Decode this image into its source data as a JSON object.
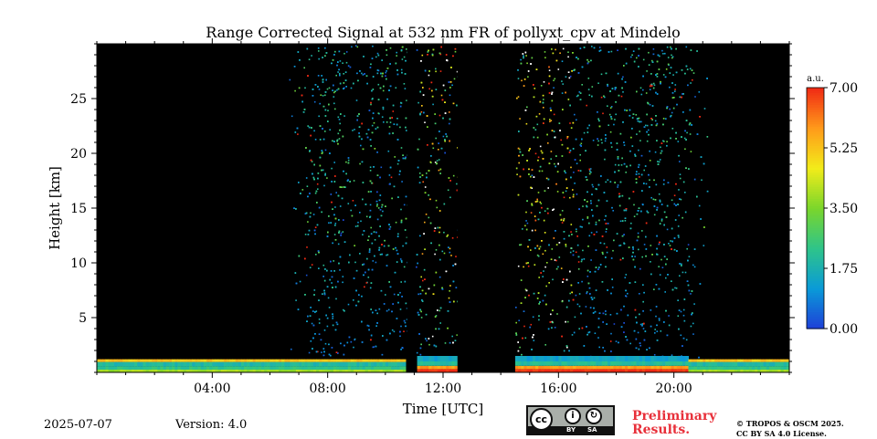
{
  "chart_data": {
    "type": "heatmap",
    "title": "Range Corrected Signal at 532 nm FR of pollyxt_cpv at Mindelo",
    "xlabel": "Time [UTC]",
    "ylabel": "Height [km]",
    "xlim": [
      0,
      24
    ],
    "ylim": [
      0,
      30
    ],
    "x_ticks": [
      {
        "value": 4,
        "label": "04:00"
      },
      {
        "value": 8,
        "label": "08:00"
      },
      {
        "value": 12,
        "label": "12:00"
      },
      {
        "value": 16,
        "label": "16:00"
      },
      {
        "value": 20,
        "label": "20:00"
      }
    ],
    "y_ticks": [
      {
        "value": 5,
        "label": "5"
      },
      {
        "value": 10,
        "label": "10"
      },
      {
        "value": 15,
        "label": "15"
      },
      {
        "value": 20,
        "label": "20"
      },
      {
        "value": 25,
        "label": "25"
      }
    ],
    "colorbar": {
      "label": "a.u.",
      "min": 0.0,
      "max": 7.0,
      "ticks": [
        {
          "value": 0.0,
          "label": "0.00"
        },
        {
          "value": 1.75,
          "label": "1.75"
        },
        {
          "value": 3.5,
          "label": "3.50"
        },
        {
          "value": 5.25,
          "label": "5.25"
        },
        {
          "value": 7.0,
          "label": "7.00"
        }
      ],
      "colormap": [
        "#1f3fd8",
        "#0a9ad8",
        "#2ec48a",
        "#7ad62c",
        "#f2ec1a",
        "#ff9a1a",
        "#f02a14"
      ]
    },
    "no_data_intervals": [
      [
        10.75,
        11.05
      ],
      [
        12.5,
        14.5
      ]
    ],
    "features": [
      {
        "name": "boundary-layer",
        "x_range": [
          0,
          24
        ],
        "height_km": [
          0,
          1.3
        ]
      },
      {
        "name": "noisy-daytime-signal",
        "x_range": [
          7.3,
          20.3
        ],
        "height_km": [
          0,
          30
        ]
      }
    ]
  },
  "footer": {
    "date": "2025-07-07",
    "version": "Version: 4.0",
    "license_badge": [
      "BY",
      "SA"
    ],
    "preliminary": [
      "Preliminary",
      "Results."
    ],
    "copyright": [
      "© TROPOS & OSCM 2025.",
      "CC BY SA 4.0 License."
    ]
  }
}
